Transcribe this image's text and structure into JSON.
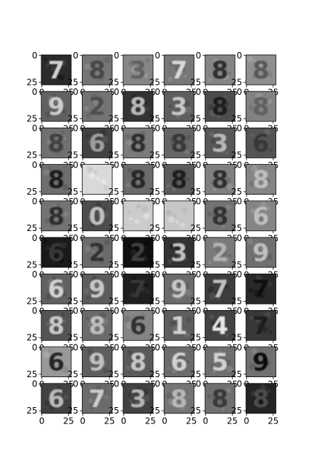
{
  "chart_data": {
    "type": "image-grid",
    "title": "",
    "rows": 10,
    "cols": 6,
    "image_shape": [
      28,
      28
    ],
    "xlim": [
      0,
      27
    ],
    "ylim": [
      27,
      0
    ],
    "x_ticks": [
      0,
      25
    ],
    "y_ticks": [
      0,
      25
    ],
    "x_tick_labels": [
      "0",
      "25"
    ],
    "y_tick_labels": [
      "0",
      "25"
    ],
    "tick_label_visibility": "labels overlap neighbouring panels; only the bottom row x labels and left column y labels are fully readable",
    "digits": [
      [
        "7",
        "8",
        "3",
        "7",
        "8",
        "8"
      ],
      [
        "9",
        "2",
        "8",
        "3",
        "8",
        "8"
      ],
      [
        "8",
        "6",
        "8",
        "8",
        "3",
        "6"
      ],
      [
        "8",
        "",
        "8",
        "8",
        "8",
        "8"
      ],
      [
        "8",
        "0",
        "",
        "",
        "8",
        "6"
      ],
      [
        "6",
        "2",
        "2",
        "3",
        "2",
        "9"
      ],
      [
        "6",
        "9",
        "7",
        "9",
        "7",
        "7"
      ],
      [
        "8",
        "8",
        "6",
        "1",
        "4",
        "7"
      ],
      [
        "6",
        "9",
        "8",
        "6",
        "5",
        "9"
      ],
      [
        "6",
        "7",
        "3",
        "8",
        "8",
        "8"
      ]
    ],
    "background_gray": [
      [
        0.17,
        0.46,
        0.53,
        0.47,
        0.52,
        0.56
      ],
      [
        0.38,
        0.45,
        0.2,
        0.37,
        0.3,
        0.51
      ],
      [
        0.44,
        0.26,
        0.48,
        0.4,
        0.34,
        0.33
      ],
      [
        0.43,
        0.85,
        0.42,
        0.36,
        0.5,
        0.52
      ],
      [
        0.45,
        0.3,
        0.8,
        0.78,
        0.45,
        0.52
      ],
      [
        0.1,
        0.42,
        0.06,
        0.2,
        0.48,
        0.44
      ],
      [
        0.38,
        0.36,
        0.12,
        0.42,
        0.24,
        0.16
      ],
      [
        0.33,
        0.42,
        0.52,
        0.37,
        0.26,
        0.22
      ],
      [
        0.6,
        0.37,
        0.35,
        0.42,
        0.43,
        0.44
      ],
      [
        0.26,
        0.42,
        0.26,
        0.46,
        0.44,
        0.14
      ]
    ],
    "stroke_gray": [
      [
        0.82,
        0.28,
        0.38,
        0.85,
        0.18,
        0.35
      ],
      [
        0.8,
        0.3,
        0.72,
        0.78,
        0.12,
        0.38
      ],
      [
        0.25,
        0.62,
        0.18,
        0.22,
        0.72,
        0.22
      ],
      [
        0.1,
        0.6,
        0.15,
        0.12,
        0.18,
        0.75
      ],
      [
        0.18,
        0.75,
        0.95,
        0.94,
        0.2,
        0.75
      ],
      [
        0.22,
        0.2,
        0.25,
        0.75,
        0.7,
        0.75
      ],
      [
        0.82,
        0.78,
        0.22,
        0.78,
        0.75,
        0.06
      ],
      [
        0.78,
        0.75,
        0.2,
        0.82,
        0.9,
        0.12
      ],
      [
        0.15,
        0.75,
        0.78,
        0.82,
        0.82,
        0.05
      ],
      [
        0.72,
        0.8,
        0.7,
        0.72,
        0.22,
        0.3
      ]
    ]
  }
}
